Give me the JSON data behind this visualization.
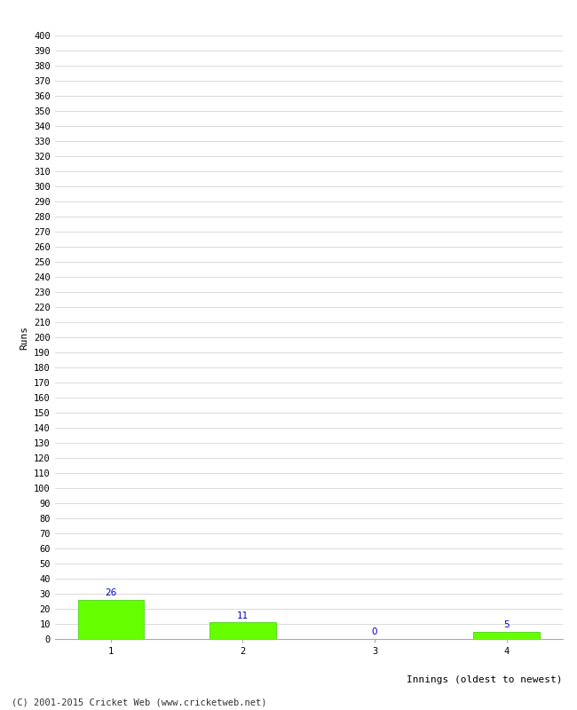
{
  "categories": [
    "1",
    "2",
    "3",
    "4"
  ],
  "values": [
    26,
    11,
    0,
    5
  ],
  "bar_color": "#66ff00",
  "bar_edge_color": "#33cc00",
  "value_color": "#0000cc",
  "ylabel": "Runs",
  "xlabel": "Innings (oldest to newest)",
  "ylim": [
    0,
    400
  ],
  "ytick_step": 10,
  "background_color": "#ffffff",
  "grid_color": "#cccccc",
  "footer": "(C) 2001-2015 Cricket Web (www.cricketweb.net)",
  "value_fontsize": 7.5,
  "axis_fontsize": 7.5,
  "label_fontsize": 8,
  "footer_fontsize": 7.5
}
